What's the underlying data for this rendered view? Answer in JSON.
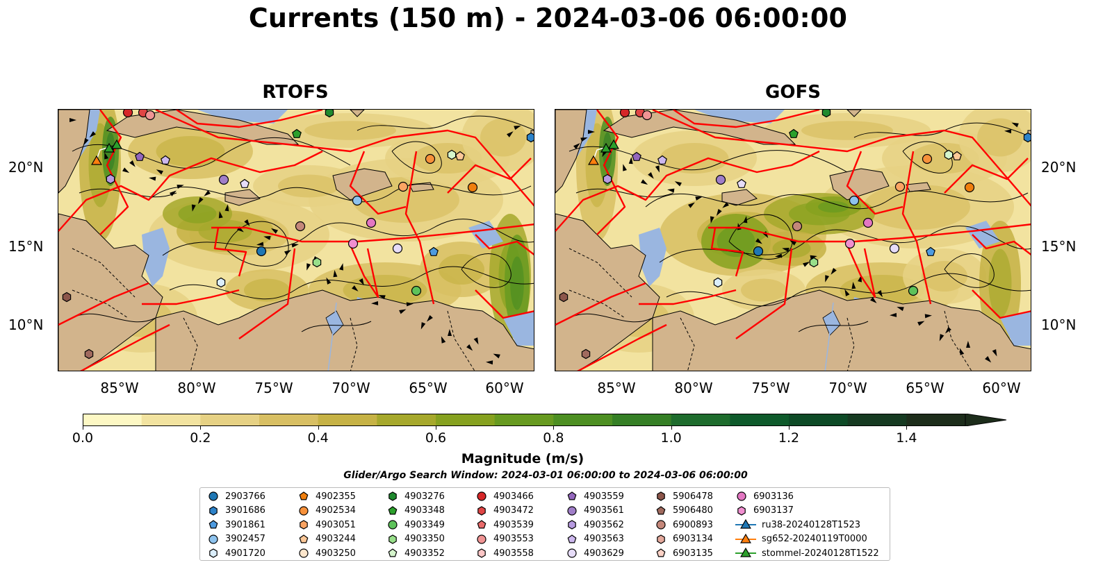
{
  "title": "Currents (150 m) - 2024-03-06 06:00:00",
  "panels": [
    {
      "title": "RTOFS"
    },
    {
      "title": "GOFS"
    }
  ],
  "lat_labels": [
    "20°N",
    "15°N",
    "10°N"
  ],
  "lon_labels": [
    "85°W",
    "80°W",
    "75°W",
    "70°W",
    "65°W",
    "60°W"
  ],
  "colorbar": {
    "label": "Magnitude (m/s)",
    "ticks": [
      "0.0",
      "0.2",
      "0.4",
      "0.6",
      "0.8",
      "1.0",
      "1.2",
      "1.4"
    ],
    "range": [
      0,
      1.5
    ],
    "extend": "max",
    "colors": [
      "#fdf8c4",
      "#f2e3a0",
      "#e6d184",
      "#d8bf63",
      "#c6b245",
      "#a6a82c",
      "#86a11f",
      "#679a20",
      "#4d8f22",
      "#357f25",
      "#1e6c2d",
      "#0e5a2b",
      "#0d4a26",
      "#163a21",
      "#1d2d1b"
    ]
  },
  "colors": {
    "land": "#d2b48c",
    "shallow": "#9ab6e0",
    "tracks": "#ff0000",
    "streamlines": "#000000"
  },
  "search_window": "Glider/Argo Search Window: 2024-03-01 06:00:00 to 2024-03-06 06:00:00",
  "legend": [
    {
      "label": "2903766",
      "marker": "circle",
      "color": "#1f77b4"
    },
    {
      "label": "3901686",
      "marker": "hexagon",
      "color": "#2c82c9"
    },
    {
      "label": "3901861",
      "marker": "pentagon",
      "color": "#4e9be0"
    },
    {
      "label": "3902457",
      "marker": "circle",
      "color": "#8ec3ee"
    },
    {
      "label": "4901720",
      "marker": "hexagon",
      "color": "#dbeefb"
    },
    {
      "label": "4902355",
      "marker": "pentagon",
      "color": "#f07f0e"
    },
    {
      "label": "4902534",
      "marker": "circle",
      "color": "#f7913a"
    },
    {
      "label": "4903051",
      "marker": "hexagon",
      "color": "#fba463"
    },
    {
      "label": "4903244",
      "marker": "pentagon",
      "color": "#fcc898"
    },
    {
      "label": "4903250",
      "marker": "circle",
      "color": "#fde6cc"
    },
    {
      "label": "4903276",
      "marker": "hexagon",
      "color": "#1f8a2e"
    },
    {
      "label": "4903348",
      "marker": "pentagon",
      "color": "#2ca02c"
    },
    {
      "label": "4903349",
      "marker": "circle",
      "color": "#5dc25a"
    },
    {
      "label": "4903350",
      "marker": "hexagon",
      "color": "#98df8a"
    },
    {
      "label": "4903352",
      "marker": "pentagon",
      "color": "#d5f5cc"
    },
    {
      "label": "4903466",
      "marker": "circle",
      "color": "#d62728"
    },
    {
      "label": "4903472",
      "marker": "hexagon",
      "color": "#e04545"
    },
    {
      "label": "4903539",
      "marker": "pentagon",
      "color": "#e86a6a"
    },
    {
      "label": "4903553",
      "marker": "circle",
      "color": "#f09494"
    },
    {
      "label": "4903558",
      "marker": "hexagon",
      "color": "#fbc6c6"
    },
    {
      "label": "4903559",
      "marker": "pentagon",
      "color": "#9467bd"
    },
    {
      "label": "4903561",
      "marker": "circle",
      "color": "#a07ec8"
    },
    {
      "label": "4903562",
      "marker": "hexagon",
      "color": "#b79be0"
    },
    {
      "label": "4903563",
      "marker": "pentagon",
      "color": "#cdb8ee"
    },
    {
      "label": "4903629",
      "marker": "circle",
      "color": "#e6dcf8"
    },
    {
      "label": "5906478",
      "marker": "hexagon",
      "color": "#8c564b"
    },
    {
      "label": "5906480",
      "marker": "pentagon",
      "color": "#a06a5e"
    },
    {
      "label": "6900893",
      "marker": "circle",
      "color": "#c4877a"
    },
    {
      "label": "6903134",
      "marker": "hexagon",
      "color": "#e4a99c"
    },
    {
      "label": "6903135",
      "marker": "pentagon",
      "color": "#fbd2c6"
    },
    {
      "label": "6903136",
      "marker": "circle",
      "color": "#e377c2"
    },
    {
      "label": "6903137",
      "marker": "hexagon",
      "color": "#f08fd0"
    },
    {
      "label": "ru38-20240128T1523",
      "marker": "triangle-line",
      "color": "#1f77b4"
    },
    {
      "label": "sg652-20240119T0000",
      "marker": "triangle-line",
      "color": "#ff7f0e"
    },
    {
      "label": "stommel-20240128T1522",
      "marker": "triangle-line",
      "color": "#2ca02c"
    }
  ]
}
